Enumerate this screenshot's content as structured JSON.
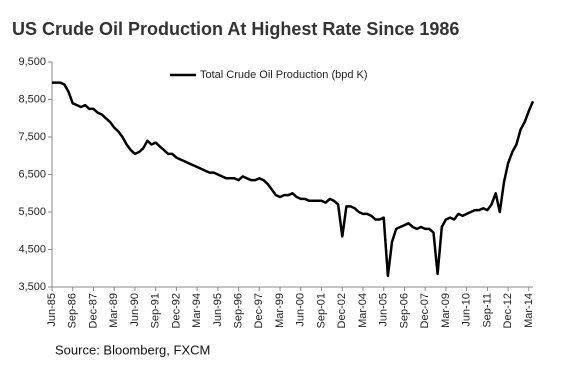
{
  "chart_data": {
    "type": "line",
    "title": "US Crude Oil Production At Highest Rate Since 1986",
    "source": "Source: Bloomberg, FXCM",
    "categories": [
      "Jun-85",
      null,
      null,
      null,
      null,
      "Sep-86",
      null,
      null,
      null,
      null,
      "Dec-87",
      null,
      null,
      null,
      null,
      "Mar-89",
      null,
      null,
      null,
      null,
      "Jun-90",
      null,
      null,
      null,
      null,
      "Sep-91",
      null,
      null,
      null,
      null,
      "Dec-92",
      null,
      null,
      null,
      null,
      "Mar-94",
      null,
      null,
      null,
      null,
      "Jun-95",
      null,
      null,
      null,
      null,
      "Sep-96",
      null,
      null,
      null,
      null,
      "Dec-97",
      null,
      null,
      null,
      null,
      "Mar-99",
      null,
      null,
      null,
      null,
      "Jun-00",
      null,
      null,
      null,
      null,
      "Sep-01",
      null,
      null,
      null,
      null,
      "Dec-02",
      null,
      null,
      null,
      null,
      "Mar-04",
      null,
      null,
      null,
      null,
      "Jun-05",
      null,
      null,
      null,
      null,
      "Sep-06",
      null,
      null,
      null,
      null,
      "Dec-07",
      null,
      null,
      null,
      null,
      "Mar-09",
      null,
      null,
      null,
      null,
      "Jun-10",
      null,
      null,
      null,
      null,
      "Sep-11",
      null,
      null,
      null,
      null,
      "Dec-12",
      null,
      null,
      null,
      null,
      "Mar-14",
      null
    ],
    "series": [
      {
        "name": "Total Crude Oil Production (bpd K)",
        "color": "#000000",
        "values": [
          8950,
          8950,
          8950,
          8900,
          8700,
          8400,
          8350,
          8300,
          8350,
          8250,
          8250,
          8150,
          8100,
          8000,
          7900,
          7750,
          7650,
          7500,
          7300,
          7150,
          7050,
          7100,
          7200,
          7400,
          7300,
          7350,
          7250,
          7150,
          7050,
          7050,
          6950,
          6900,
          6850,
          6800,
          6750,
          6700,
          6650,
          6600,
          6550,
          6550,
          6500,
          6450,
          6400,
          6400,
          6400,
          6350,
          6450,
          6400,
          6350,
          6350,
          6400,
          6350,
          6250,
          6100,
          5950,
          5900,
          5950,
          5950,
          6000,
          5900,
          5850,
          5850,
          5800,
          5800,
          5800,
          5800,
          5750,
          5850,
          5800,
          5700,
          4850,
          5650,
          5650,
          5600,
          5500,
          5450,
          5450,
          5400,
          5300,
          5300,
          5350,
          3800,
          4700,
          5050,
          5100,
          5150,
          5200,
          5100,
          5050,
          5100,
          5050,
          5050,
          4950,
          3850,
          5100,
          5300,
          5350,
          5300,
          5450,
          5400,
          5450,
          5500,
          5550,
          5550,
          5600,
          5550,
          5700,
          6000,
          5500,
          6300,
          6800,
          7100,
          7300,
          7700,
          7900,
          8200,
          8450
        ]
      }
    ],
    "ylim": [
      3500,
      9500
    ],
    "yticks": [
      {
        "value": 3500,
        "label": "3,500"
      },
      {
        "value": 4500,
        "label": "4,500"
      },
      {
        "value": 5500,
        "label": "5,500"
      },
      {
        "value": 6500,
        "label": "6,500"
      },
      {
        "value": 7500,
        "label": "7,500"
      },
      {
        "value": 8500,
        "label": "8,500"
      },
      {
        "value": 9500,
        "label": "9,500"
      }
    ],
    "grid": false
  }
}
